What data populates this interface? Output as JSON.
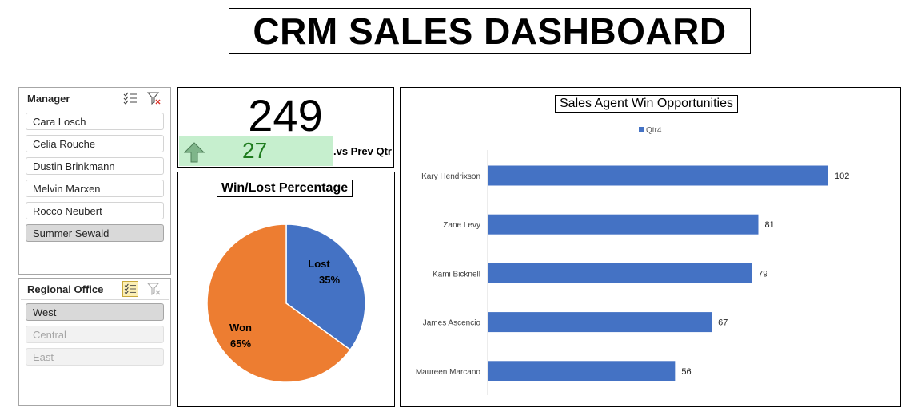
{
  "header": {
    "title": "CRM SALES DASHBOARD"
  },
  "manager_slicer": {
    "title": "Manager",
    "items": [
      {
        "label": "Cara Losch",
        "state": "normal"
      },
      {
        "label": "Celia Rouche",
        "state": "normal"
      },
      {
        "label": "Dustin Brinkmann",
        "state": "normal"
      },
      {
        "label": "Melvin Marxen",
        "state": "normal"
      },
      {
        "label": "Rocco Neubert",
        "state": "normal"
      },
      {
        "label": "Summer Sewald",
        "state": "selected"
      }
    ]
  },
  "office_slicer": {
    "title": "Regional Office",
    "items": [
      {
        "label": "West",
        "state": "selected"
      },
      {
        "label": "Central",
        "state": "dim"
      },
      {
        "label": "East",
        "state": "dim"
      }
    ]
  },
  "kpi": {
    "value": "249",
    "change": "27",
    "change_label": ".vs Prev Qtr",
    "colors": {
      "bg": "#c6efce",
      "arrow": "#7fb58a",
      "text": "#1e7b1e"
    }
  },
  "chart_data": [
    {
      "type": "pie",
      "title": "Win/Lost Percentage",
      "slices": [
        {
          "label": "Lost",
          "value": 35,
          "text": "35%",
          "color": "#4472c4"
        },
        {
          "label": "Won",
          "value": 65,
          "text": "65%",
          "color": "#ed7d31"
        }
      ]
    },
    {
      "type": "bar",
      "orientation": "horizontal",
      "title": "Sales Agent Win Opportunities",
      "legend": {
        "position": "top",
        "entries": [
          "Qtr4"
        ]
      },
      "categories": [
        "Kary Hendrixson",
        "Zane Levy",
        "Kami Bicknell",
        "James Ascencio",
        "Maureen Marcano"
      ],
      "series": [
        {
          "name": "Qtr4",
          "values": [
            102,
            81,
            79,
            67,
            56
          ],
          "color": "#4472c4"
        }
      ],
      "xlim": [
        0,
        102
      ],
      "grid": false
    }
  ]
}
